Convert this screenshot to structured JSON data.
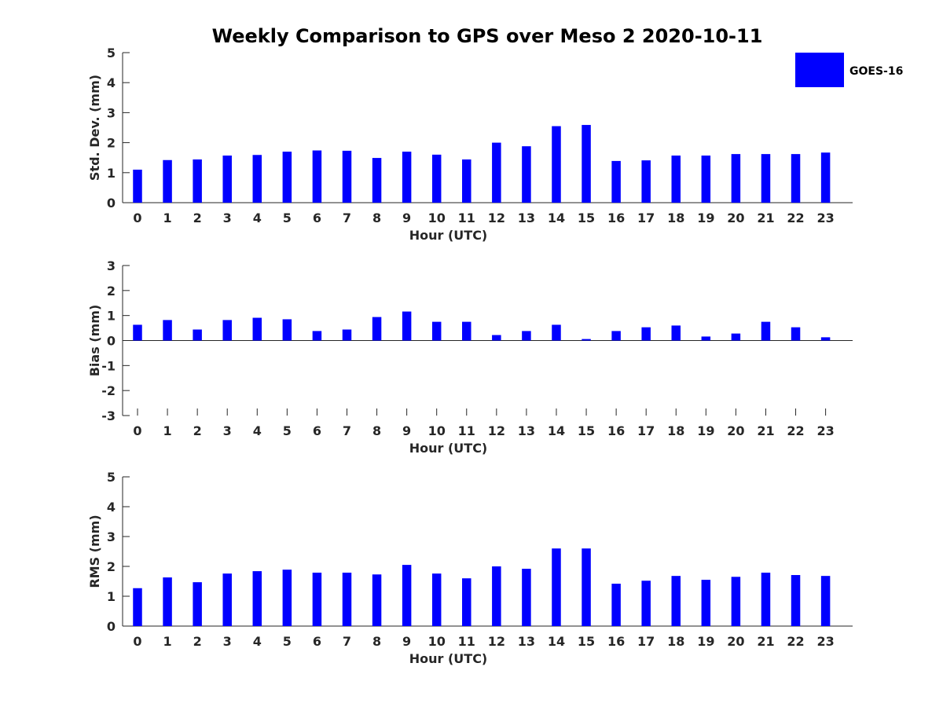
{
  "title": "Weekly Comparison to GPS over Meso 2 2020-10-11",
  "legend": {
    "label": "GOES-16",
    "color": "#0000ff"
  },
  "chart_data": [
    {
      "type": "bar",
      "title": "Weekly Comparison to GPS over Meso 2 2020-10-11",
      "xlabel": "Hour (UTC)",
      "ylabel": "Std. Dev. (mm)",
      "ylim": [
        0,
        5
      ],
      "yticks": [
        "0",
        "1",
        "2",
        "3",
        "4",
        "5"
      ],
      "categories": [
        "0",
        "1",
        "2",
        "3",
        "4",
        "5",
        "6",
        "7",
        "8",
        "9",
        "10",
        "11",
        "12",
        "13",
        "14",
        "15",
        "16",
        "17",
        "18",
        "19",
        "20",
        "21",
        "22",
        "23"
      ],
      "series": [
        {
          "name": "GOES-16",
          "color": "#0000ff",
          "values": [
            1.1,
            1.42,
            1.44,
            1.57,
            1.59,
            1.7,
            1.74,
            1.73,
            1.49,
            1.7,
            1.6,
            1.44,
            2.0,
            1.88,
            2.55,
            2.59,
            1.39,
            1.41,
            1.57,
            1.57,
            1.62,
            1.62,
            1.62,
            1.67
          ]
        }
      ]
    },
    {
      "type": "bar",
      "title": "",
      "xlabel": "Hour (UTC)",
      "ylabel": "Bias (mm)",
      "ylim": [
        -3,
        3
      ],
      "yticks": [
        "-3",
        "-2",
        "-1",
        "0",
        "1",
        "2",
        "3"
      ],
      "categories": [
        "0",
        "1",
        "2",
        "3",
        "4",
        "5",
        "6",
        "7",
        "8",
        "9",
        "10",
        "11",
        "12",
        "13",
        "14",
        "15",
        "16",
        "17",
        "18",
        "19",
        "20",
        "21",
        "22",
        "23"
      ],
      "series": [
        {
          "name": "GOES-16",
          "color": "#0000ff",
          "values": [
            0.63,
            0.82,
            0.44,
            0.82,
            0.91,
            0.85,
            0.38,
            0.44,
            0.94,
            1.16,
            0.75,
            0.75,
            0.22,
            0.38,
            0.63,
            0.06,
            0.38,
            0.53,
            0.6,
            0.16,
            0.28,
            0.75,
            0.53,
            0.13
          ]
        }
      ]
    },
    {
      "type": "bar",
      "title": "",
      "xlabel": "Hour (UTC)",
      "ylabel": "RMS (mm)",
      "ylim": [
        0,
        5
      ],
      "yticks": [
        "0",
        "1",
        "2",
        "3",
        "4",
        "5"
      ],
      "categories": [
        "0",
        "1",
        "2",
        "3",
        "4",
        "5",
        "6",
        "7",
        "8",
        "9",
        "10",
        "11",
        "12",
        "13",
        "14",
        "15",
        "16",
        "17",
        "18",
        "19",
        "20",
        "21",
        "22",
        "23"
      ],
      "series": [
        {
          "name": "GOES-16",
          "color": "#0000ff",
          "values": [
            1.27,
            1.63,
            1.47,
            1.76,
            1.84,
            1.89,
            1.79,
            1.79,
            1.73,
            2.05,
            1.76,
            1.6,
            2.0,
            1.92,
            2.6,
            2.6,
            1.42,
            1.52,
            1.68,
            1.55,
            1.65,
            1.79,
            1.71,
            1.68
          ]
        }
      ]
    }
  ]
}
